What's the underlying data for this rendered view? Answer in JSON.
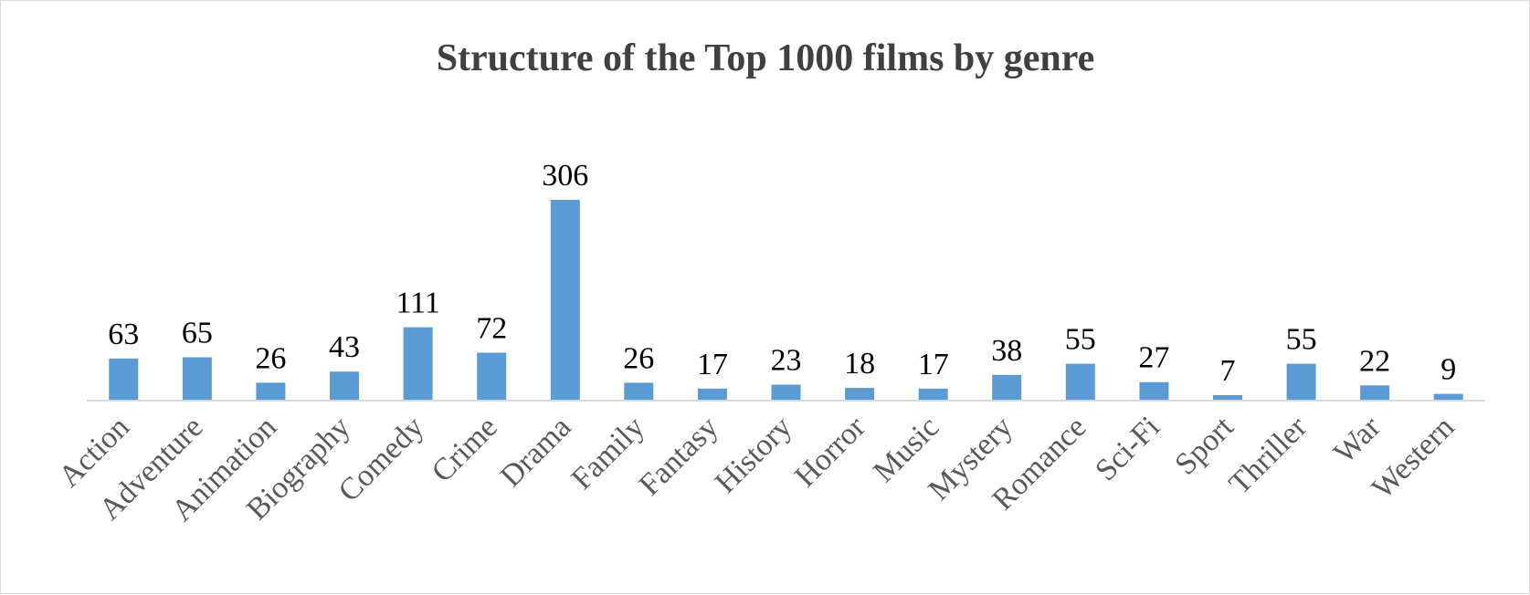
{
  "chart_data": {
    "type": "bar",
    "title": "Structure of the Top 1000 films by genre",
    "xlabel": "",
    "ylabel": "",
    "categories": [
      "Action",
      "Adventure",
      "Animation",
      "Biography",
      "Comedy",
      "Crime",
      "Drama",
      "Family",
      "Fantasy",
      "History",
      "Horror",
      "Music",
      "Mystery",
      "Romance",
      "Sci-Fi",
      "Sport",
      "Thriller",
      "War",
      "Western"
    ],
    "values": [
      63,
      65,
      26,
      43,
      111,
      72,
      306,
      26,
      17,
      23,
      18,
      17,
      38,
      55,
      27,
      7,
      55,
      22,
      9
    ],
    "data_labels": true,
    "y_axis_visible": false,
    "grid": false,
    "legend": "none",
    "colors": {
      "bar": "#5b9bd5",
      "axis": "#d9d9d9",
      "title": "#404040",
      "tick_label": "#595959",
      "data_label": "#000000"
    }
  }
}
